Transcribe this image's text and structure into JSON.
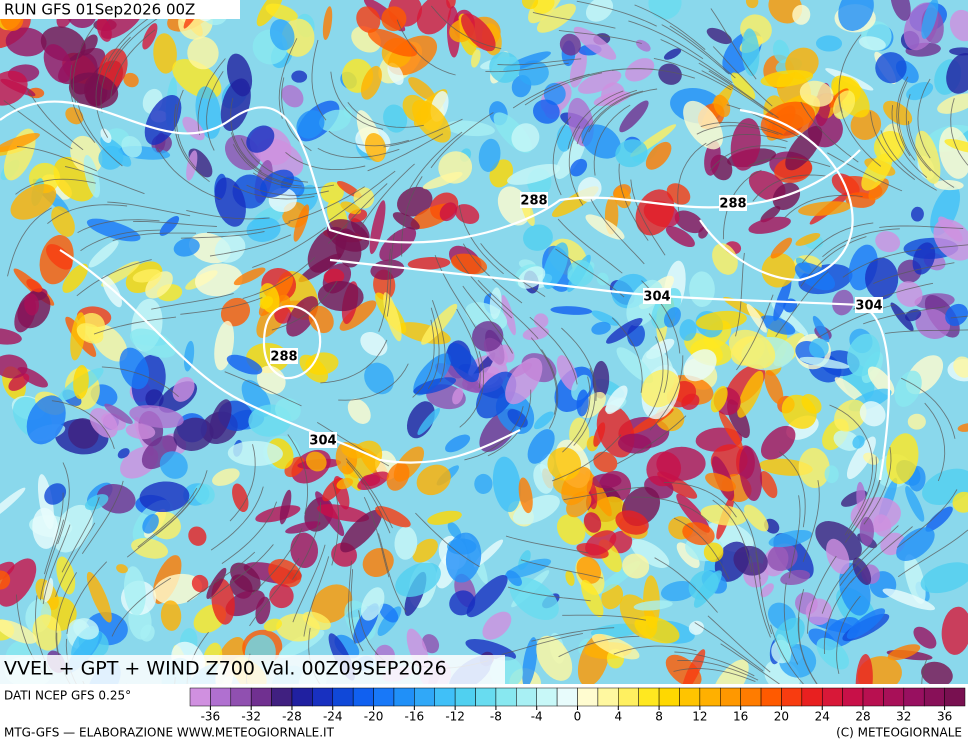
{
  "header": {
    "run": "RUN GFS 01Sep2026 00Z"
  },
  "map": {
    "title": "VVEL + GPT + WIND Z700 Val. 00Z09SEP2026",
    "contour_labels": [
      288,
      288,
      288,
      304,
      304,
      304
    ]
  },
  "footer": {
    "source": "DATI NCEP GFS 0.25°",
    "credit": "MTG-GFS — ELABORAZIONE WWW.METEOGIORNALE.IT",
    "copyright": "(C) METEOGIORNALE"
  },
  "colorbar": {
    "lim": [
      -38,
      38
    ],
    "ticks": [
      -36,
      -32,
      -28,
      -24,
      -20,
      -16,
      -12,
      -8,
      -4,
      0,
      4,
      8,
      12,
      16,
      20,
      24,
      28,
      32,
      36
    ],
    "colors": [
      "#d090e0",
      "#b070d0",
      "#9050b0",
      "#703090",
      "#402080",
      "#2020a0",
      "#1830c0",
      "#1048d8",
      "#1060f0",
      "#1878f8",
      "#2090f8",
      "#30a8f8",
      "#40c0f8",
      "#50d0f0",
      "#68dcf0",
      "#88e8f0",
      "#a8f0f4",
      "#c8f8f8",
      "#e8fcfc",
      "#fffcd0",
      "#fff8a0",
      "#fff060",
      "#ffe820",
      "#ffd800",
      "#ffc400",
      "#ffb000",
      "#ff9800",
      "#ff7c00",
      "#ff5a00",
      "#f83c10",
      "#e82020",
      "#d81838",
      "#c81048",
      "#b81050",
      "#a81058",
      "#981060",
      "#881058",
      "#781050"
    ]
  }
}
